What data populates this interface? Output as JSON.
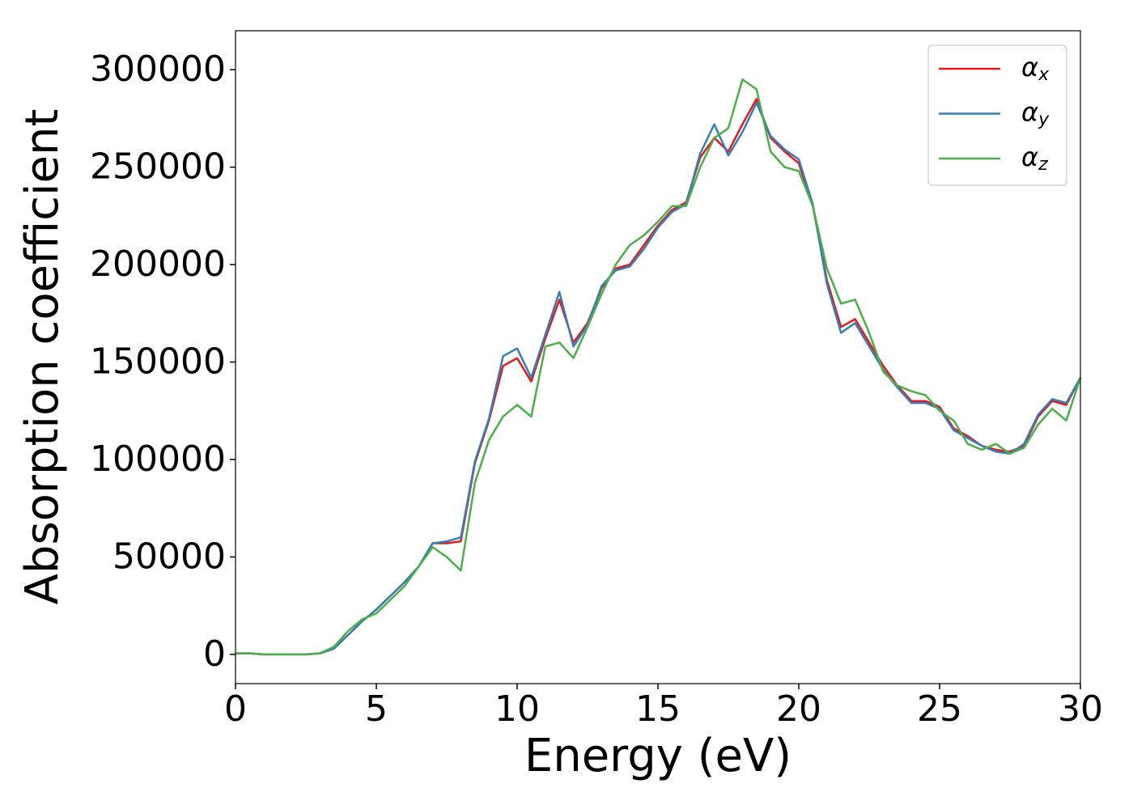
{
  "chart_data": {
    "type": "line",
    "x_label": "Energy (eV)",
    "y_label": "Absorption coefficient",
    "x": [
      0,
      0.5,
      1,
      1.5,
      2,
      2.5,
      3,
      3.5,
      4,
      4.5,
      5,
      5.5,
      6,
      6.5,
      7,
      7.5,
      8,
      8.5,
      9,
      9.5,
      10,
      10.5,
      11,
      11.5,
      12,
      12.5,
      13,
      13.5,
      14,
      14.5,
      15,
      15.5,
      16,
      16.5,
      17,
      17.5,
      18,
      18.5,
      19,
      19.5,
      20,
      20.5,
      21,
      21.5,
      22,
      22.5,
      23,
      23.5,
      24,
      24.5,
      25,
      25.5,
      26,
      26.5,
      27,
      27.5,
      28,
      28.5,
      29,
      29.5,
      30
    ],
    "series": [
      {
        "name": "αx",
        "color": "#e41a1c",
        "values": [
          500,
          500,
          0,
          0,
          0,
          0,
          500,
          3000,
          10000,
          17000,
          23000,
          30000,
          37000,
          45000,
          57000,
          57000,
          58000,
          98000,
          120000,
          148000,
          152000,
          140000,
          162000,
          182000,
          160000,
          170000,
          188000,
          198000,
          200000,
          210000,
          220000,
          228000,
          232000,
          255000,
          265000,
          258000,
          272000,
          285000,
          265000,
          258000,
          252000,
          230000,
          192000,
          168000,
          172000,
          160000,
          148000,
          138000,
          130000,
          130000,
          127000,
          116000,
          112000,
          107000,
          105000,
          104000,
          107000,
          122000,
          130000,
          128000,
          142000
        ]
      },
      {
        "name": "αy",
        "color": "#377eb8",
        "values": [
          500,
          500,
          0,
          0,
          0,
          0,
          500,
          3000,
          10000,
          17000,
          23000,
          30000,
          37000,
          45000,
          57000,
          58000,
          60000,
          99000,
          121000,
          153000,
          157000,
          142000,
          164000,
          186000,
          158000,
          169000,
          189000,
          197000,
          199000,
          208000,
          219000,
          227000,
          231000,
          257000,
          272000,
          256000,
          268000,
          283000,
          266000,
          259000,
          254000,
          231000,
          190000,
          165000,
          170000,
          158000,
          146000,
          137000,
          129000,
          129000,
          126000,
          115000,
          111000,
          107000,
          104000,
          103000,
          108000,
          123000,
          131000,
          129000,
          142000
        ]
      },
      {
        "name": "αz",
        "color": "#4daf4a",
        "values": [
          500,
          500,
          0,
          0,
          0,
          0,
          500,
          4000,
          12000,
          18000,
          21000,
          28000,
          35000,
          45000,
          55000,
          50000,
          43000,
          88000,
          110000,
          122000,
          128000,
          122000,
          158000,
          160000,
          152000,
          168000,
          185000,
          200000,
          210000,
          215000,
          222000,
          230000,
          230000,
          250000,
          265000,
          270000,
          295000,
          290000,
          258000,
          250000,
          248000,
          230000,
          198000,
          180000,
          182000,
          165000,
          145000,
          138000,
          135000,
          133000,
          125000,
          120000,
          108000,
          105000,
          108000,
          103000,
          106000,
          118000,
          126000,
          120000,
          142000
        ]
      }
    ],
    "xlim": [
      0,
      30
    ],
    "xticks": [
      0,
      5,
      10,
      15,
      20,
      25,
      30
    ],
    "ylim": [
      -15000,
      320000
    ],
    "yticks": [
      0,
      50000,
      100000,
      150000,
      200000,
      250000,
      300000
    ],
    "legend": "upper right"
  }
}
